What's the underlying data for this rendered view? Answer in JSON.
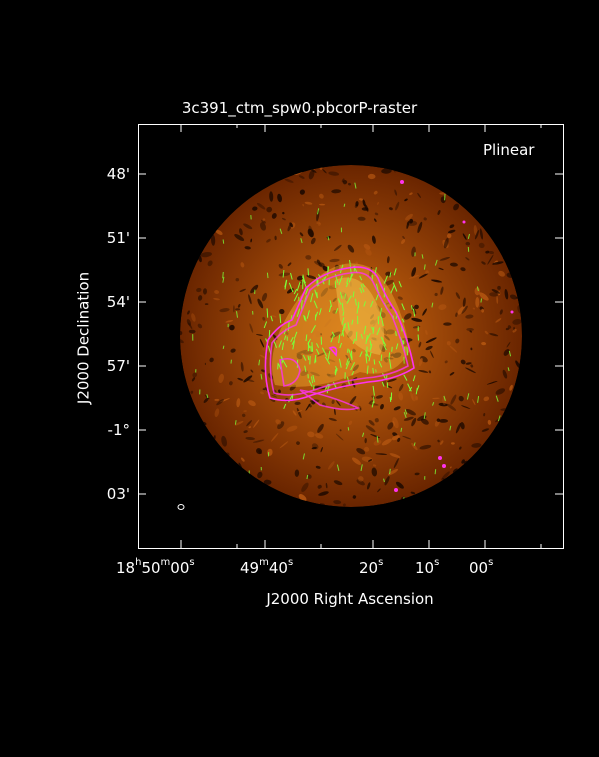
{
  "plot": {
    "title": "3c391_ctm_spw0.pbcorP-raster",
    "panel_label": "Plinear",
    "x_axis_label": "J2000 Right Ascension",
    "y_axis_label": "J2000 Declination"
  },
  "dec_ticks": [
    "48'",
    "51'",
    "54'",
    "57'",
    "-1°",
    "03'"
  ],
  "ra_ticks": [
    {
      "h": "18",
      "m": "50",
      "s": "00"
    },
    {
      "m": "49",
      "s": "40"
    },
    {
      "s": "20"
    },
    {
      "s": "10"
    },
    {
      "s": "00"
    }
  ],
  "colors": {
    "background": "#000000",
    "image_low": "#5a1e00",
    "image_high": "#f5c842",
    "contour": "#ff33ee",
    "vectors": "#7cff3a",
    "axes": "#ffffff"
  }
}
